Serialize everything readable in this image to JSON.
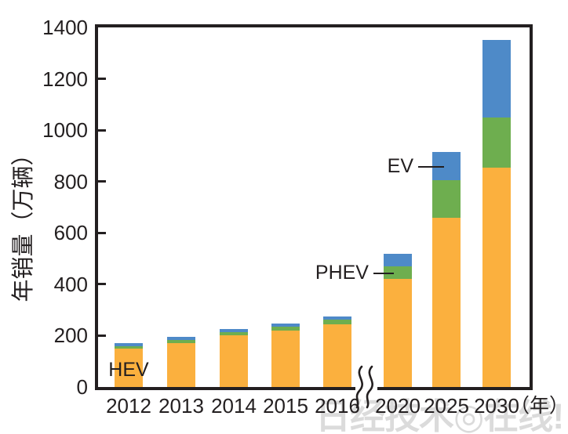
{
  "watermark": {
    "text": "日经技术◎在线!"
  },
  "chart_data": {
    "type": "bar",
    "stacked": true,
    "title": "",
    "xlabel": "",
    "ylabel": "年销量（万辆）",
    "x_unit_label": "（年）",
    "categories": [
      "2012",
      "2013",
      "2014",
      "2015",
      "2016",
      "2020",
      "2025",
      "2030"
    ],
    "series": [
      {
        "name": "HEV",
        "color": "#FBB03E",
        "values": [
          150,
          170,
          200,
          220,
          245,
          420,
          660,
          855
        ]
      },
      {
        "name": "PHEV",
        "color": "#6EAE4F",
        "values": [
          10,
          12,
          15,
          15,
          18,
          50,
          145,
          195
        ]
      },
      {
        "name": "EV",
        "color": "#4E8AC8",
        "values": [
          12,
          12,
          12,
          12,
          13,
          50,
          110,
          300
        ]
      }
    ],
    "totals": [
      172,
      194,
      227,
      247,
      276,
      520,
      915,
      1350
    ],
    "ylim": [
      0,
      1400
    ],
    "yticks": [
      0,
      200,
      400,
      600,
      800,
      1000,
      1200,
      1400
    ],
    "grid": false,
    "legend": "inline-annotations",
    "axis_break_between": [
      "2016",
      "2020"
    ],
    "annotations": [
      {
        "label": "HEV",
        "points_to": "orange bottom segment of 2012 bar"
      },
      {
        "label": "PHEV",
        "points_to": "green middle segment of 2020 bar"
      },
      {
        "label": "EV",
        "points_to": "blue top segment of 2025 bar"
      }
    ]
  },
  "colors": {
    "axis": "#231F20",
    "text": "#231F20",
    "watermark": "#DBDBDB",
    "background": "#FFFFFF"
  }
}
